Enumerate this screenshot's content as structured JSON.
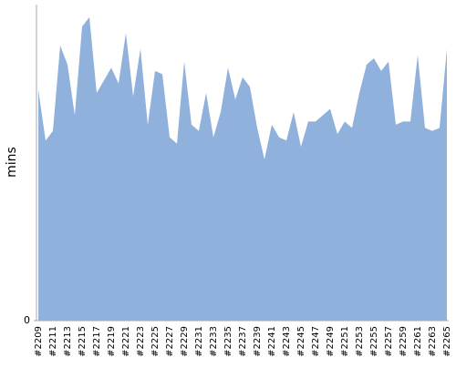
{
  "chart_data": {
    "type": "area",
    "ylabel": "mins",
    "categories": [
      "#2209",
      null,
      "#2211",
      null,
      "#2213",
      null,
      "#2215",
      null,
      "#2217",
      null,
      "#2219",
      null,
      "#2221",
      null,
      "#2223",
      null,
      "#2225",
      null,
      "#2227",
      null,
      "#2229",
      null,
      "#2231",
      null,
      "#2233",
      null,
      "#2235",
      null,
      "#2237",
      null,
      "#2239",
      null,
      "#2241",
      null,
      "#2243",
      null,
      "#2245",
      null,
      "#2247",
      null,
      "#2249",
      null,
      "#2251",
      null,
      "#2253",
      null,
      "#2255",
      null,
      "#2257",
      null,
      "#2259",
      null,
      "#2261",
      null,
      "#2263",
      null,
      "#2265"
    ],
    "values": [
      73,
      57,
      60,
      87,
      81,
      65,
      93,
      96,
      72,
      76,
      80,
      75,
      91,
      71,
      86,
      62,
      79,
      78,
      58,
      56,
      82,
      62,
      60,
      72,
      58,
      66,
      80,
      70,
      77,
      74,
      61,
      51,
      62,
      58,
      57,
      66,
      55,
      63,
      63,
      65,
      67,
      59,
      63,
      61,
      72,
      81,
      83,
      79,
      82,
      62,
      63,
      63,
      84,
      61,
      60,
      61,
      86
    ],
    "color": "#8fb1dc",
    "ylim": [
      0,
      100
    ],
    "yticks": [
      0
    ]
  }
}
